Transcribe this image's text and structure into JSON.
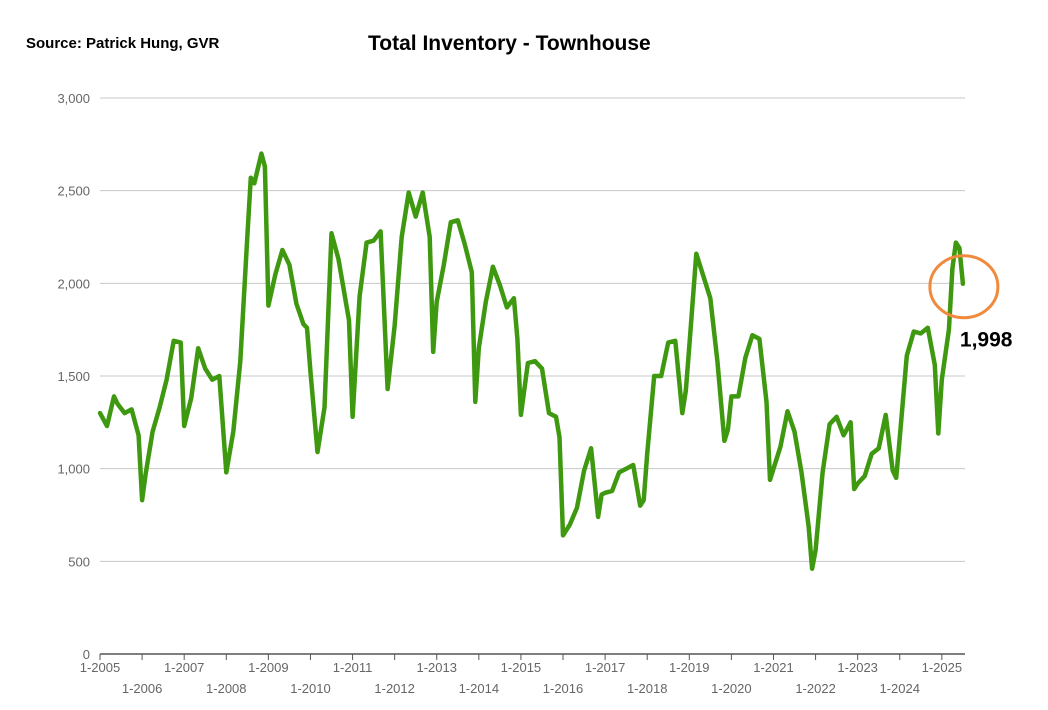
{
  "header": {
    "source": "Source:  Patrick Hung, GVR",
    "title": "Total Inventory - Townhouse"
  },
  "colors": {
    "line": "#3f9910",
    "grid": "#c8c8c8",
    "axis": "#555555",
    "tick_text": "#666666",
    "highlight_circle": "#f08a3c"
  },
  "chart_data": {
    "type": "line",
    "title": "Total Inventory - Townhouse",
    "xlabel": "",
    "ylabel": "",
    "ylim": [
      0,
      3000
    ],
    "yticks": [
      "0",
      "500",
      "1,000",
      "1,500",
      "2,000",
      "2,500",
      "3,000"
    ],
    "xticks_upper": [
      "1-2005",
      "1-2007",
      "1-2009",
      "1-2011",
      "1-2013",
      "1-2015",
      "1-2017",
      "1-2019",
      "1-2021",
      "1-2023",
      "1-2025"
    ],
    "xticks_lower": [
      "1-2006",
      "1-2008",
      "1-2010",
      "1-2012",
      "1-2014",
      "1-2016",
      "1-2018",
      "1-2020",
      "1-2022",
      "1-2024"
    ],
    "grid": true,
    "legend": "none",
    "annotation": {
      "label": "1,998",
      "target": "latest value (2025-07)"
    },
    "series": [
      {
        "x": [
          "2005-01",
          "2005-03",
          "2005-05",
          "2005-06",
          "2005-08",
          "2005-10",
          "2005-12",
          "2006-01",
          "2006-02",
          "2006-04",
          "2006-06",
          "2006-08",
          "2006-10",
          "2006-12",
          "2007-01",
          "2007-03",
          "2007-05",
          "2007-07",
          "2007-09",
          "2007-11",
          "2008-01",
          "2008-03",
          "2008-05",
          "2008-07",
          "2008-08",
          "2008-09",
          "2008-11",
          "2008-12",
          "2009-01",
          "2009-03",
          "2009-05",
          "2009-07",
          "2009-09",
          "2009-11",
          "2009-12",
          "2010-01",
          "2010-03",
          "2010-05",
          "2010-07",
          "2010-09",
          "2010-12",
          "2011-01",
          "2011-03",
          "2011-05",
          "2011-07",
          "2011-09",
          "2011-11",
          "2012-01",
          "2012-03",
          "2012-05",
          "2012-07",
          "2012-09",
          "2012-11",
          "2012-12",
          "2013-01",
          "2013-03",
          "2013-05",
          "2013-07",
          "2013-09",
          "2013-11",
          "2013-12",
          "2014-01",
          "2014-03",
          "2014-05",
          "2014-07",
          "2014-09",
          "2014-11",
          "2014-12",
          "2015-01",
          "2015-03",
          "2015-05",
          "2015-07",
          "2015-09",
          "2015-11",
          "2015-12",
          "2016-01",
          "2016-03",
          "2016-05",
          "2016-07",
          "2016-09",
          "2016-11",
          "2016-12",
          "2017-01",
          "2017-03",
          "2017-05",
          "2017-07",
          "2017-09",
          "2017-11",
          "2017-12",
          "2018-01",
          "2018-03",
          "2018-05",
          "2018-07",
          "2018-09",
          "2018-11",
          "2018-12",
          "2019-01",
          "2019-03",
          "2019-05",
          "2019-07",
          "2019-09",
          "2019-11",
          "2019-12",
          "2020-01",
          "2020-03",
          "2020-05",
          "2020-07",
          "2020-09",
          "2020-11",
          "2020-12",
          "2021-01",
          "2021-03",
          "2021-05",
          "2021-07",
          "2021-09",
          "2021-11",
          "2021-12",
          "2022-01",
          "2022-03",
          "2022-05",
          "2022-07",
          "2022-09",
          "2022-11",
          "2022-12",
          "2023-01",
          "2023-03",
          "2023-05",
          "2023-07",
          "2023-09",
          "2023-11",
          "2023-12",
          "2024-01",
          "2024-03",
          "2024-05",
          "2024-07",
          "2024-09",
          "2024-11",
          "2024-12",
          "2025-01",
          "2025-03",
          "2025-04",
          "2025-05",
          "2025-06",
          "2025-07"
        ],
        "values": [
          1300,
          1230,
          1390,
          1350,
          1300,
          1320,
          1180,
          830,
          970,
          1200,
          1330,
          1480,
          1690,
          1680,
          1230,
          1380,
          1650,
          1540,
          1480,
          1500,
          980,
          1200,
          1580,
          2250,
          2570,
          2540,
          2700,
          2630,
          1880,
          2050,
          2180,
          2100,
          1890,
          1780,
          1760,
          1520,
          1090,
          1330,
          2270,
          2130,
          1800,
          1280,
          1930,
          2220,
          2230,
          2280,
          1430,
          1770,
          2250,
          2490,
          2360,
          2490,
          2250,
          1630,
          1900,
          2100,
          2330,
          2340,
          2210,
          2060,
          1360,
          1650,
          1900,
          2090,
          1990,
          1870,
          1920,
          1700,
          1290,
          1570,
          1580,
          1540,
          1300,
          1280,
          1170,
          640,
          700,
          790,
          990,
          1110,
          740,
          860,
          870,
          880,
          980,
          1000,
          1020,
          800,
          830,
          1080,
          1500,
          1500,
          1680,
          1690,
          1300,
          1420,
          1660,
          2160,
          2040,
          1920,
          1580,
          1150,
          1210,
          1390,
          1390,
          1600,
          1720,
          1700,
          1360,
          940,
          1000,
          1120,
          1310,
          1200,
          980,
          690,
          460,
          560,
          980,
          1240,
          1280,
          1180,
          1250,
          890,
          920,
          960,
          1080,
          1110,
          1290,
          990,
          950,
          1170,
          1610,
          1740,
          1730,
          1760,
          1560,
          1190,
          1480,
          1750,
          2080,
          2220,
          2190,
          1998
        ]
      }
    ]
  }
}
